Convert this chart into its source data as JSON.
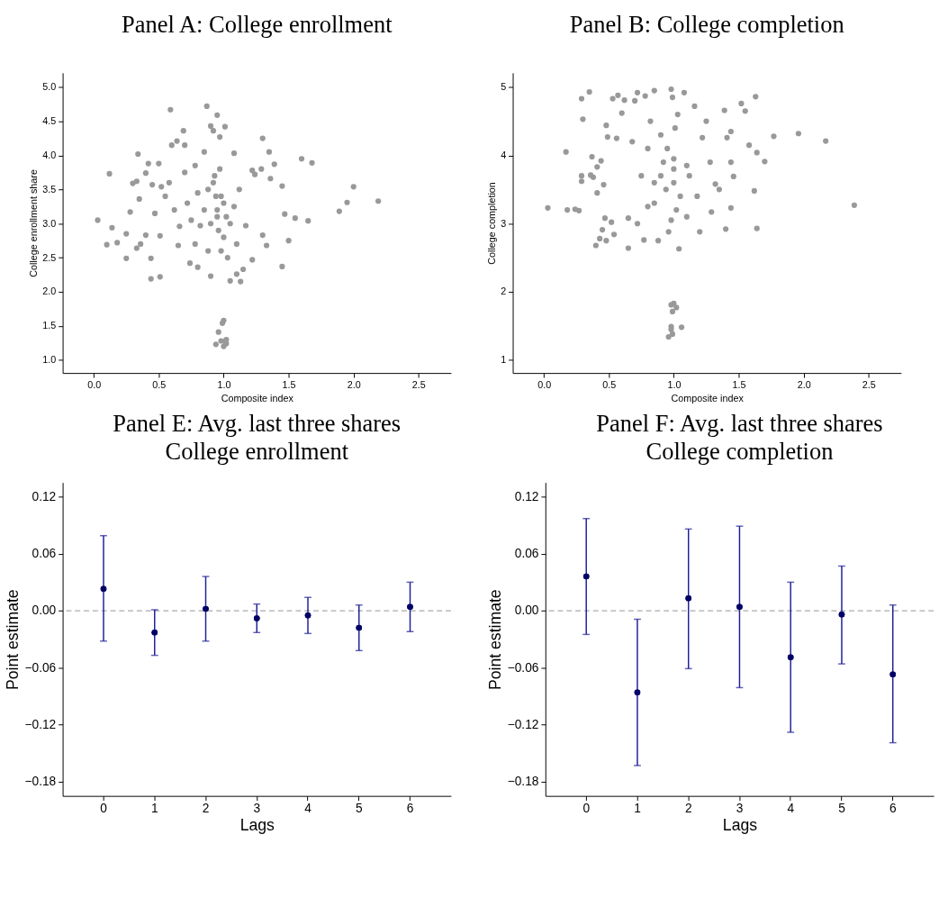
{
  "chart_data": [
    {
      "type": "scatter",
      "title": "Panel A: College enrollment",
      "xlabel": "Composite index",
      "ylabel": "College enrollment share",
      "grid": false,
      "marker": "circle",
      "xlim": [
        -0.24,
        2.75
      ],
      "ylim": [
        0.81,
        5.21
      ],
      "xticks": [
        {
          "value": 0,
          "label": "0.0"
        },
        0.5,
        {
          "value": 1,
          "label": "1.0"
        },
        1.5,
        {
          "value": 2,
          "label": "2.0"
        },
        2.5
      ],
      "yticks": [
        {
          "value": 1,
          "label": "1.0"
        },
        1.5,
        {
          "value": 2,
          "label": "2.0"
        },
        2.5,
        {
          "value": 3,
          "label": "3.0"
        },
        3.5,
        {
          "value": 4,
          "label": "4.0"
        },
        4.5,
        {
          "value": 5,
          "label": "5.0"
        }
      ],
      "series": [
        {
          "color": "#999999",
          "x": [
            0.03,
            0.1,
            0.12,
            0.14,
            0.18,
            0.25,
            0.25,
            0.28,
            0.3,
            0.33,
            0.34,
            0.33,
            0.35,
            0.36,
            0.4,
            0.42,
            0.44,
            0.44,
            0.4,
            0.45,
            0.47,
            0.5,
            0.51,
            0.51,
            0.52,
            0.55,
            0.59,
            0.6,
            0.64,
            0.69,
            0.7,
            0.65,
            0.58,
            0.62,
            0.66,
            0.7,
            0.72,
            0.74,
            0.78,
            0.8,
            0.82,
            0.85,
            0.87,
            0.88,
            0.9,
            0.9,
            0.92,
            0.93,
            0.94,
            0.95,
            0.95,
            0.96,
            0.97,
            0.96,
            0.98,
            0.99,
            1.0,
            0.94,
            1.0,
            1.01,
            1.02,
            1.02,
            0.98,
            1.0,
            1.01,
            1.02,
            1.05,
            1.08,
            1.1,
            1.13,
            1.15,
            1.17,
            1.22,
            1.22,
            1.24,
            1.3,
            1.29,
            1.3,
            1.33,
            1.35,
            1.36,
            1.39,
            1.45,
            1.45,
            1.47,
            1.5,
            1.55,
            1.6,
            1.65,
            1.68,
            1.89,
            1.95,
            2.0,
            2.19,
            0.85,
            0.9,
            0.92,
            0.95,
            0.98,
            1.0,
            1.05,
            1.08,
            0.8,
            0.75,
            1.1,
            1.12,
            0.88,
            1.03,
            0.97,
            0.78
          ],
          "values": [
            3.05,
            2.69,
            3.73,
            2.94,
            2.72,
            2.85,
            2.49,
            3.17,
            3.59,
            3.62,
            4.02,
            2.64,
            3.36,
            2.7,
            3.74,
            3.88,
            2.49,
            2.19,
            2.83,
            3.57,
            3.15,
            3.88,
            2.22,
            2.82,
            3.54,
            3.4,
            4.67,
            4.15,
            4.21,
            4.36,
            4.15,
            2.68,
            3.6,
            3.2,
            2.96,
            3.75,
            3.3,
            2.42,
            3.85,
            2.36,
            2.97,
            4.05,
            4.72,
            3.5,
            4.43,
            2.23,
            4.36,
            3.7,
            3.4,
            4.59,
            3.2,
            2.9,
            4.27,
            1.41,
            1.28,
            1.54,
            1.58,
            1.23,
            1.2,
            1.27,
            1.3,
            1.24,
            2.6,
            3.3,
            4.42,
            3.1,
            2.16,
            4.03,
            2.26,
            2.15,
            2.33,
            2.97,
            3.78,
            2.47,
            3.72,
            4.25,
            3.8,
            2.83,
            2.68,
            4.05,
            3.66,
            3.87,
            3.55,
            2.37,
            3.14,
            2.75,
            3.08,
            3.95,
            3.04,
            3.89,
            3.18,
            3.31,
            3.54,
            3.33,
            3.2,
            3.0,
            3.6,
            3.1,
            3.4,
            2.8,
            3.0,
            3.25,
            3.45,
            3.05,
            2.7,
            3.5,
            2.6,
            2.5,
            3.8,
            2.7
          ]
        }
      ]
    },
    {
      "type": "scatter",
      "title": "Panel B: College completion",
      "xlabel": "Composite index",
      "ylabel": "College completion",
      "grid": false,
      "marker": "circle",
      "xlim": [
        -0.24,
        2.75
      ],
      "ylim": [
        0.81,
        5.21
      ],
      "xticks": [
        {
          "value": 0,
          "label": "0.0"
        },
        0.5,
        {
          "value": 1,
          "label": "1.0"
        },
        1.5,
        {
          "value": 2,
          "label": "2.0"
        },
        2.5
      ],
      "yticks": [
        1,
        2,
        3,
        4,
        5
      ],
      "series": [
        {
          "color": "#999999",
          "x": [
            0.03,
            0.17,
            0.18,
            0.24,
            0.27,
            0.29,
            0.3,
            0.29,
            0.29,
            0.35,
            0.36,
            0.37,
            0.38,
            0.4,
            0.41,
            0.41,
            0.43,
            0.44,
            0.45,
            0.46,
            0.47,
            0.48,
            0.48,
            0.49,
            0.52,
            0.53,
            0.54,
            0.56,
            0.57,
            0.6,
            0.62,
            0.65,
            0.65,
            0.68,
            0.7,
            0.72,
            0.72,
            0.75,
            0.77,
            0.78,
            0.8,
            0.82,
            0.85,
            0.85,
            0.88,
            0.9,
            0.92,
            0.94,
            0.96,
            0.98,
            0.99,
            1.0,
            1.0,
            1.01,
            1.02,
            1.04,
            1.08,
            1.1,
            1.12,
            1.16,
            1.18,
            1.2,
            1.22,
            1.25,
            1.28,
            1.29,
            1.32,
            1.35,
            1.39,
            1.4,
            1.41,
            1.44,
            1.44,
            1.44,
            1.46,
            1.52,
            1.55,
            1.58,
            1.62,
            1.63,
            1.64,
            1.64,
            1.7,
            1.77,
            1.96,
            2.17,
            2.39,
            0.96,
            0.98,
            0.98,
            0.99,
            0.98,
            1.0,
            0.99,
            1.02,
            1.06,
            0.9,
            0.95,
            1.0,
            1.05,
            0.85,
            1.1,
            0.8,
            0.98,
            1.03
          ],
          "values": [
            3.23,
            4.05,
            3.2,
            3.21,
            3.19,
            4.83,
            4.53,
            3.7,
            3.62,
            4.93,
            3.71,
            3.98,
            3.68,
            2.68,
            3.45,
            3.83,
            2.78,
            3.92,
            2.91,
            3.57,
            3.08,
            2.75,
            4.44,
            4.27,
            3.02,
            4.83,
            2.84,
            4.25,
            4.88,
            4.62,
            4.81,
            2.64,
            3.08,
            4.2,
            4.8,
            4.92,
            3.0,
            3.7,
            2.76,
            4.87,
            4.1,
            4.5,
            4.95,
            3.3,
            2.75,
            4.3,
            3.9,
            3.5,
            2.88,
            4.97,
            4.85,
            3.8,
            3.6,
            4.4,
            3.2,
            2.63,
            4.92,
            3.1,
            3.7,
            4.72,
            3.4,
            2.88,
            4.26,
            4.5,
            3.9,
            3.17,
            3.58,
            3.5,
            4.66,
            2.92,
            4.26,
            4.35,
            3.9,
            3.23,
            3.69,
            4.76,
            4.65,
            4.15,
            3.48,
            4.86,
            4.04,
            2.93,
            3.91,
            4.28,
            4.32,
            4.21,
            3.27,
            1.34,
            1.49,
            1.45,
            1.38,
            1.81,
            1.83,
            1.71,
            1.77,
            1.48,
            3.7,
            4.1,
            3.95,
            3.4,
            3.6,
            3.85,
            3.25,
            3.05,
            4.6
          ]
        }
      ]
    },
    {
      "type": "scatter",
      "title": "Panel E: Avg. last three shares\nCollege enrollment",
      "xlabel": "Lags",
      "ylabel": "Point estimate",
      "grid": false,
      "marker": "circle",
      "color": "#000066",
      "categories": [
        "0",
        "1",
        "2",
        "3",
        "4",
        "5",
        "6"
      ],
      "values": [
        0.023,
        -0.023,
        0.002,
        -0.008,
        -0.005,
        -0.018,
        0.004
      ],
      "errors": [
        [
          -0.032,
          0.079
        ],
        [
          -0.047,
          0.001
        ],
        [
          -0.032,
          0.036
        ],
        [
          -0.023,
          0.007
        ],
        [
          -0.024,
          0.014
        ],
        [
          -0.042,
          0.006
        ],
        [
          -0.022,
          0.03
        ]
      ],
      "ylim": [
        -0.195,
        0.135
      ],
      "yticks": [
        -0.18,
        -0.12,
        -0.06,
        {
          "value": 0,
          "label": "0.00"
        },
        0.06,
        0.12
      ],
      "ref_lines": [
        {
          "axis": "y",
          "value": 0,
          "color": "#aaaaaa",
          "line_style": "dashed"
        }
      ]
    },
    {
      "type": "scatter",
      "title": "Panel F: Avg. last three shares\nCollege completion",
      "xlabel": "Lags",
      "ylabel": "Point estimate",
      "grid": false,
      "marker": "circle",
      "color": "#000066",
      "categories": [
        "0",
        "1",
        "2",
        "3",
        "4",
        "5",
        "6"
      ],
      "values": [
        0.036,
        -0.086,
        0.013,
        0.004,
        -0.049,
        -0.004,
        -0.067
      ],
      "errors": [
        [
          -0.025,
          0.097
        ],
        [
          -0.163,
          -0.009
        ],
        [
          -0.061,
          0.086
        ],
        [
          -0.081,
          0.089
        ],
        [
          -0.128,
          0.03
        ],
        [
          -0.056,
          0.047
        ],
        [
          -0.139,
          0.006
        ]
      ],
      "ylim": [
        -0.195,
        0.135
      ],
      "yticks": [
        -0.18,
        -0.12,
        -0.06,
        {
          "value": 0,
          "label": "0.00"
        },
        0.06,
        0.12
      ],
      "ref_lines": [
        {
          "axis": "y",
          "value": 0,
          "color": "#aaaaaa",
          "line_style": "dashed"
        }
      ]
    }
  ]
}
